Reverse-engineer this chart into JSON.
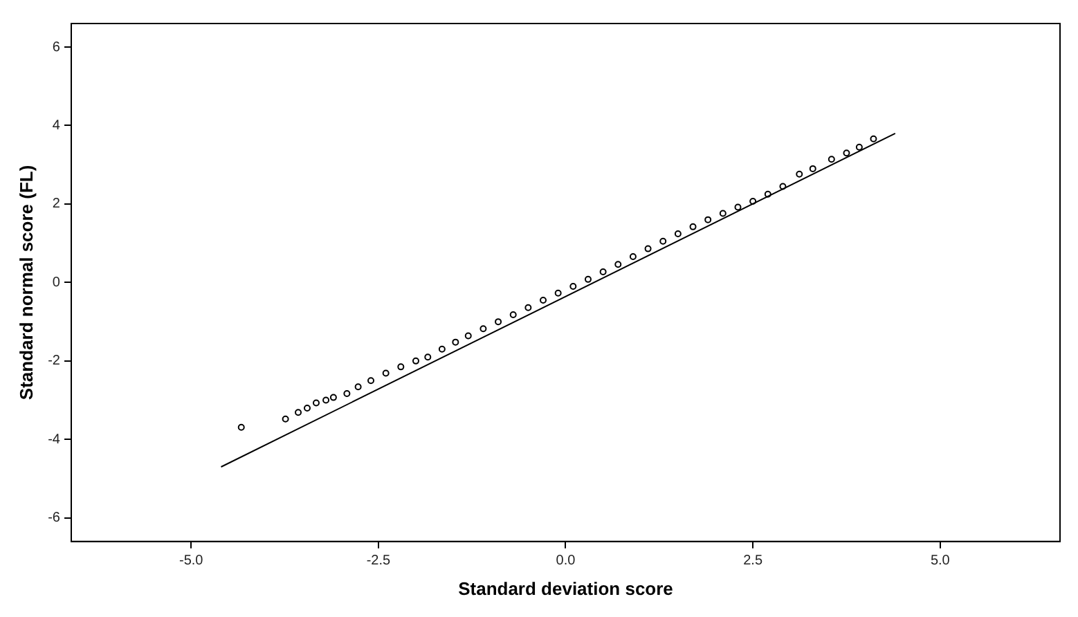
{
  "chart_data": {
    "type": "scatter",
    "xlabel": "Standard deviation score",
    "ylabel": "Standard normal score (FL)",
    "xlim": [
      -6.6,
      6.6
    ],
    "ylim": [
      -6.6,
      6.6
    ],
    "xticks": [
      {
        "value": -5,
        "label": "-5.0"
      },
      {
        "value": -2.5,
        "label": "-2.5"
      },
      {
        "value": 0,
        "label": "0.0"
      },
      {
        "value": 2.5,
        "label": "2.5"
      },
      {
        "value": 5,
        "label": "5.0"
      }
    ],
    "yticks": [
      -6,
      -4,
      -2,
      0,
      2,
      4,
      6
    ],
    "grid": false,
    "legend": false,
    "marker": "circle",
    "series": [
      {
        "type": "scatter",
        "color": "#000000",
        "x": [
          -4.33,
          -3.74,
          -3.57,
          -3.45,
          -3.33,
          -3.2,
          -3.1,
          -2.92,
          -2.77,
          -2.6,
          -2.4,
          -2.2,
          -2.0,
          -1.84,
          -1.65,
          -1.47,
          -1.3,
          -1.1,
          -0.9,
          -0.7,
          -0.5,
          -0.3,
          -0.1,
          0.1,
          0.3,
          0.5,
          0.7,
          0.9,
          1.1,
          1.3,
          1.5,
          1.7,
          1.9,
          2.1,
          2.3,
          2.5,
          2.7,
          2.9,
          3.12,
          3.3,
          3.55,
          3.75,
          3.92,
          4.11
        ],
        "values": [
          -3.69,
          -3.48,
          -3.31,
          -3.2,
          -3.07,
          -3.0,
          -2.93,
          -2.83,
          -2.66,
          -2.5,
          -2.31,
          -2.15,
          -2.0,
          -1.9,
          -1.7,
          -1.52,
          -1.36,
          -1.18,
          -1.0,
          -0.82,
          -0.64,
          -0.45,
          -0.27,
          -0.1,
          0.08,
          0.27,
          0.46,
          0.66,
          0.86,
          1.05,
          1.24,
          1.42,
          1.6,
          1.76,
          1.92,
          2.07,
          2.25,
          2.45,
          2.76,
          2.9,
          3.14,
          3.3,
          3.45,
          3.66
        ]
      },
      {
        "type": "line",
        "color": "#000000",
        "marker": "none",
        "x": [
          -4.6,
          4.4
        ],
        "values": [
          -4.7,
          3.8
        ]
      }
    ]
  }
}
